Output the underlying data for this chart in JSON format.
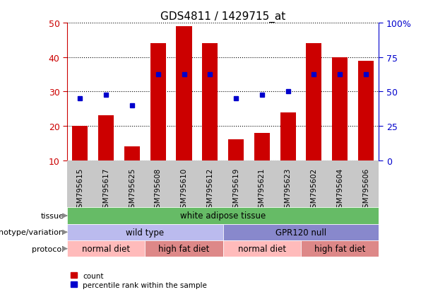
{
  "title": "GDS4811 / 1429715_at",
  "samples": [
    "GSM795615",
    "GSM795617",
    "GSM795625",
    "GSM795608",
    "GSM795610",
    "GSM795612",
    "GSM795619",
    "GSM795621",
    "GSM795623",
    "GSM795602",
    "GSM795604",
    "GSM795606"
  ],
  "counts": [
    20,
    23,
    14,
    44,
    49,
    44,
    16,
    18,
    24,
    44,
    40,
    39
  ],
  "percentile_ranks_left": [
    28,
    29,
    26,
    35,
    35,
    35,
    28,
    29,
    30,
    35,
    35,
    35
  ],
  "ylim_left": [
    10,
    50
  ],
  "ylim_right": [
    0,
    100
  ],
  "yticks_left": [
    10,
    20,
    30,
    40,
    50
  ],
  "yticks_right": [
    0,
    25,
    50,
    75,
    100
  ],
  "ytick_labels_right": [
    "0",
    "25",
    "50",
    "75",
    "100%"
  ],
  "bar_color": "#CC0000",
  "dot_color": "#0000CC",
  "bg_color": "#FFFFFF",
  "xtick_bg_color": "#C8C8C8",
  "tissue_label": "tissue",
  "genotype_label": "genotype/variation",
  "protocol_label": "protocol",
  "tissue_text": "white adipose tissue",
  "tissue_color": "#66BB66",
  "genotype_groups": [
    {
      "text": "wild type",
      "color": "#BBBBEE",
      "start": 0,
      "end": 6
    },
    {
      "text": "GPR120 null",
      "color": "#8888CC",
      "start": 6,
      "end": 12
    }
  ],
  "protocol_groups": [
    {
      "text": "normal diet",
      "color": "#FFBBBB",
      "start": 0,
      "end": 3
    },
    {
      "text": "high fat diet",
      "color": "#DD8888",
      "start": 3,
      "end": 6
    },
    {
      "text": "normal diet",
      "color": "#FFBBBB",
      "start": 6,
      "end": 9
    },
    {
      "text": "high fat diet",
      "color": "#DD8888",
      "start": 9,
      "end": 12
    }
  ],
  "legend_count_color": "#CC0000",
  "legend_pct_color": "#0000CC",
  "left_tick_color": "#CC0000",
  "right_tick_color": "#0000CC",
  "arrow_color": "#888888"
}
